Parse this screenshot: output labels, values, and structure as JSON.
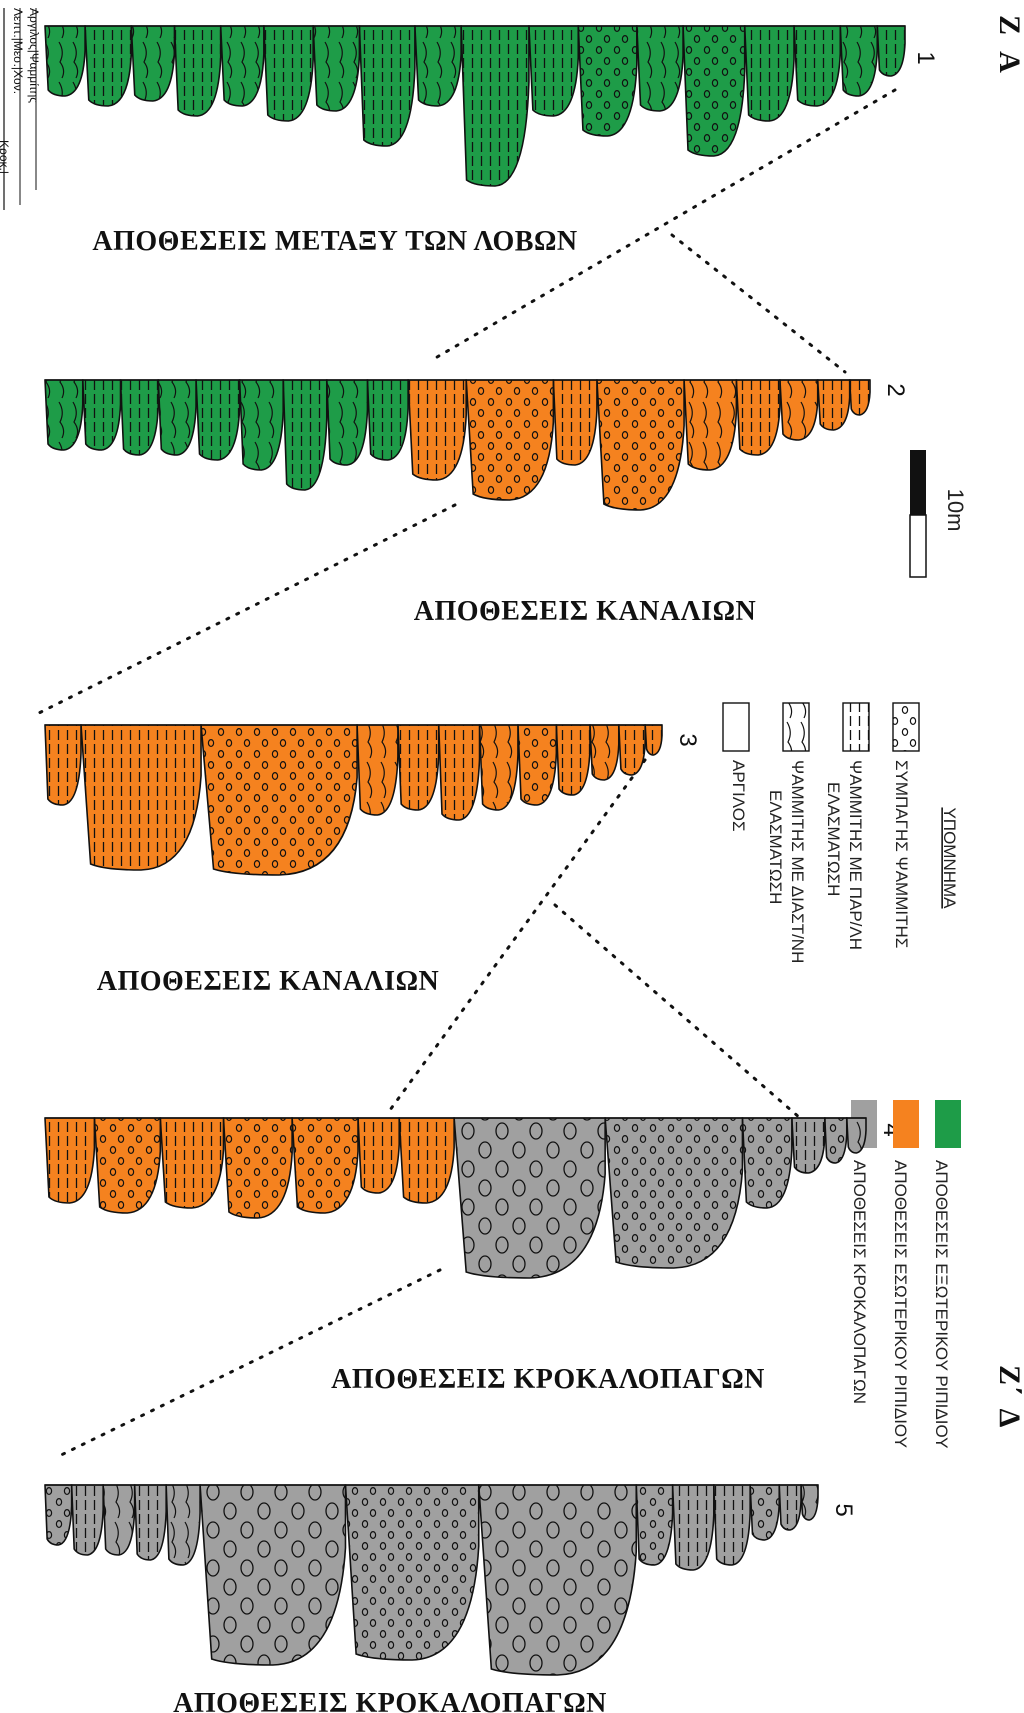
{
  "corner_labels": {
    "top_letter": "Z",
    "top_sub": "A",
    "bottom_letter": "Z΄",
    "bottom_sub": "Δ"
  },
  "grain_size_axis": {
    "top_row": "Λεπτ.|Μεσ.|Χον.",
    "row2": "Αργιλος|Ψαμμίτης",
    "row3": "Κροκ.|"
  },
  "scale_bar": {
    "label": "10m"
  },
  "sections": [
    {
      "number": "1",
      "title": "ΑΠΟΘΕΣΕΙΣ ΜΕΤΑΞΥ ΤΩΝ ΛΟΒΩΝ"
    },
    {
      "number": "2",
      "title": "ΑΠΟΘΕΣΕΙΣ ΚΑΝΑΛΙΩΝ"
    },
    {
      "number": "3",
      "title": "ΑΠΟΘΕΣΕΙΣ ΚΑΝΑΛΙΩΝ"
    },
    {
      "number": "4",
      "title": "ΑΠΟΘΕΣΕΙΣ ΚΡΟΚΑΛΟΠΑΓΩΝ"
    },
    {
      "number": "5",
      "title": "ΑΠΟΘΕΣΕΙΣ ΚΡΟΚΑΛΟΠΑΓΩΝ"
    }
  ],
  "lithology_legend": {
    "title": "ΥΠΟΜΝΗΜΑ",
    "items": [
      {
        "lines": [
          "ΣΥΜΠΑΓΗΣ ΨΑΜΜΙΤΗΣ"
        ],
        "symbol": "dots"
      },
      {
        "lines": [
          "ΨΑΜΜΙΤΗΣ ΜΕ ΠΑΡ/ΛΗ",
          "ΕΛΑΣΜΑΤΩΣΗ"
        ],
        "symbol": "horizontal-lines"
      },
      {
        "lines": [
          "ΨΑΜΜΙΤΗΣ ΜΕ ΔΙΑΣΤ/ΝΗ",
          "ΕΛΑΣΜΑΤΩΣΗ"
        ],
        "symbol": "cross-bedding"
      },
      {
        "lines": [
          "ΑΡΓΙΛΟΣ"
        ],
        "symbol": "blank"
      }
    ]
  },
  "facies_legend": {
    "items": [
      {
        "label": "ΑΠΟΘΕΣΕΙΣ ΕΞΩΤΕΡΙΚΟΥ ΡΙΠΙΔΙΟΥ",
        "color": "#1e9c48"
      },
      {
        "label": "ΑΠΟΘΕΣΕΙΣ ΕΣΩΤΕΡΙΚΟΥ ΡΙΠΙΔΙΟΥ",
        "color": "#f5821f"
      },
      {
        "label": "ΑΠΟΘΕΣΕΙΣ ΚΡΟΚΑΛΟΠΑΓΩΝ",
        "color": "#a0a0a0"
      }
    ]
  },
  "colors": {
    "green": "#1e9c48",
    "orange": "#f5821f",
    "gray": "#a0a0a0",
    "outline": "#111111"
  }
}
